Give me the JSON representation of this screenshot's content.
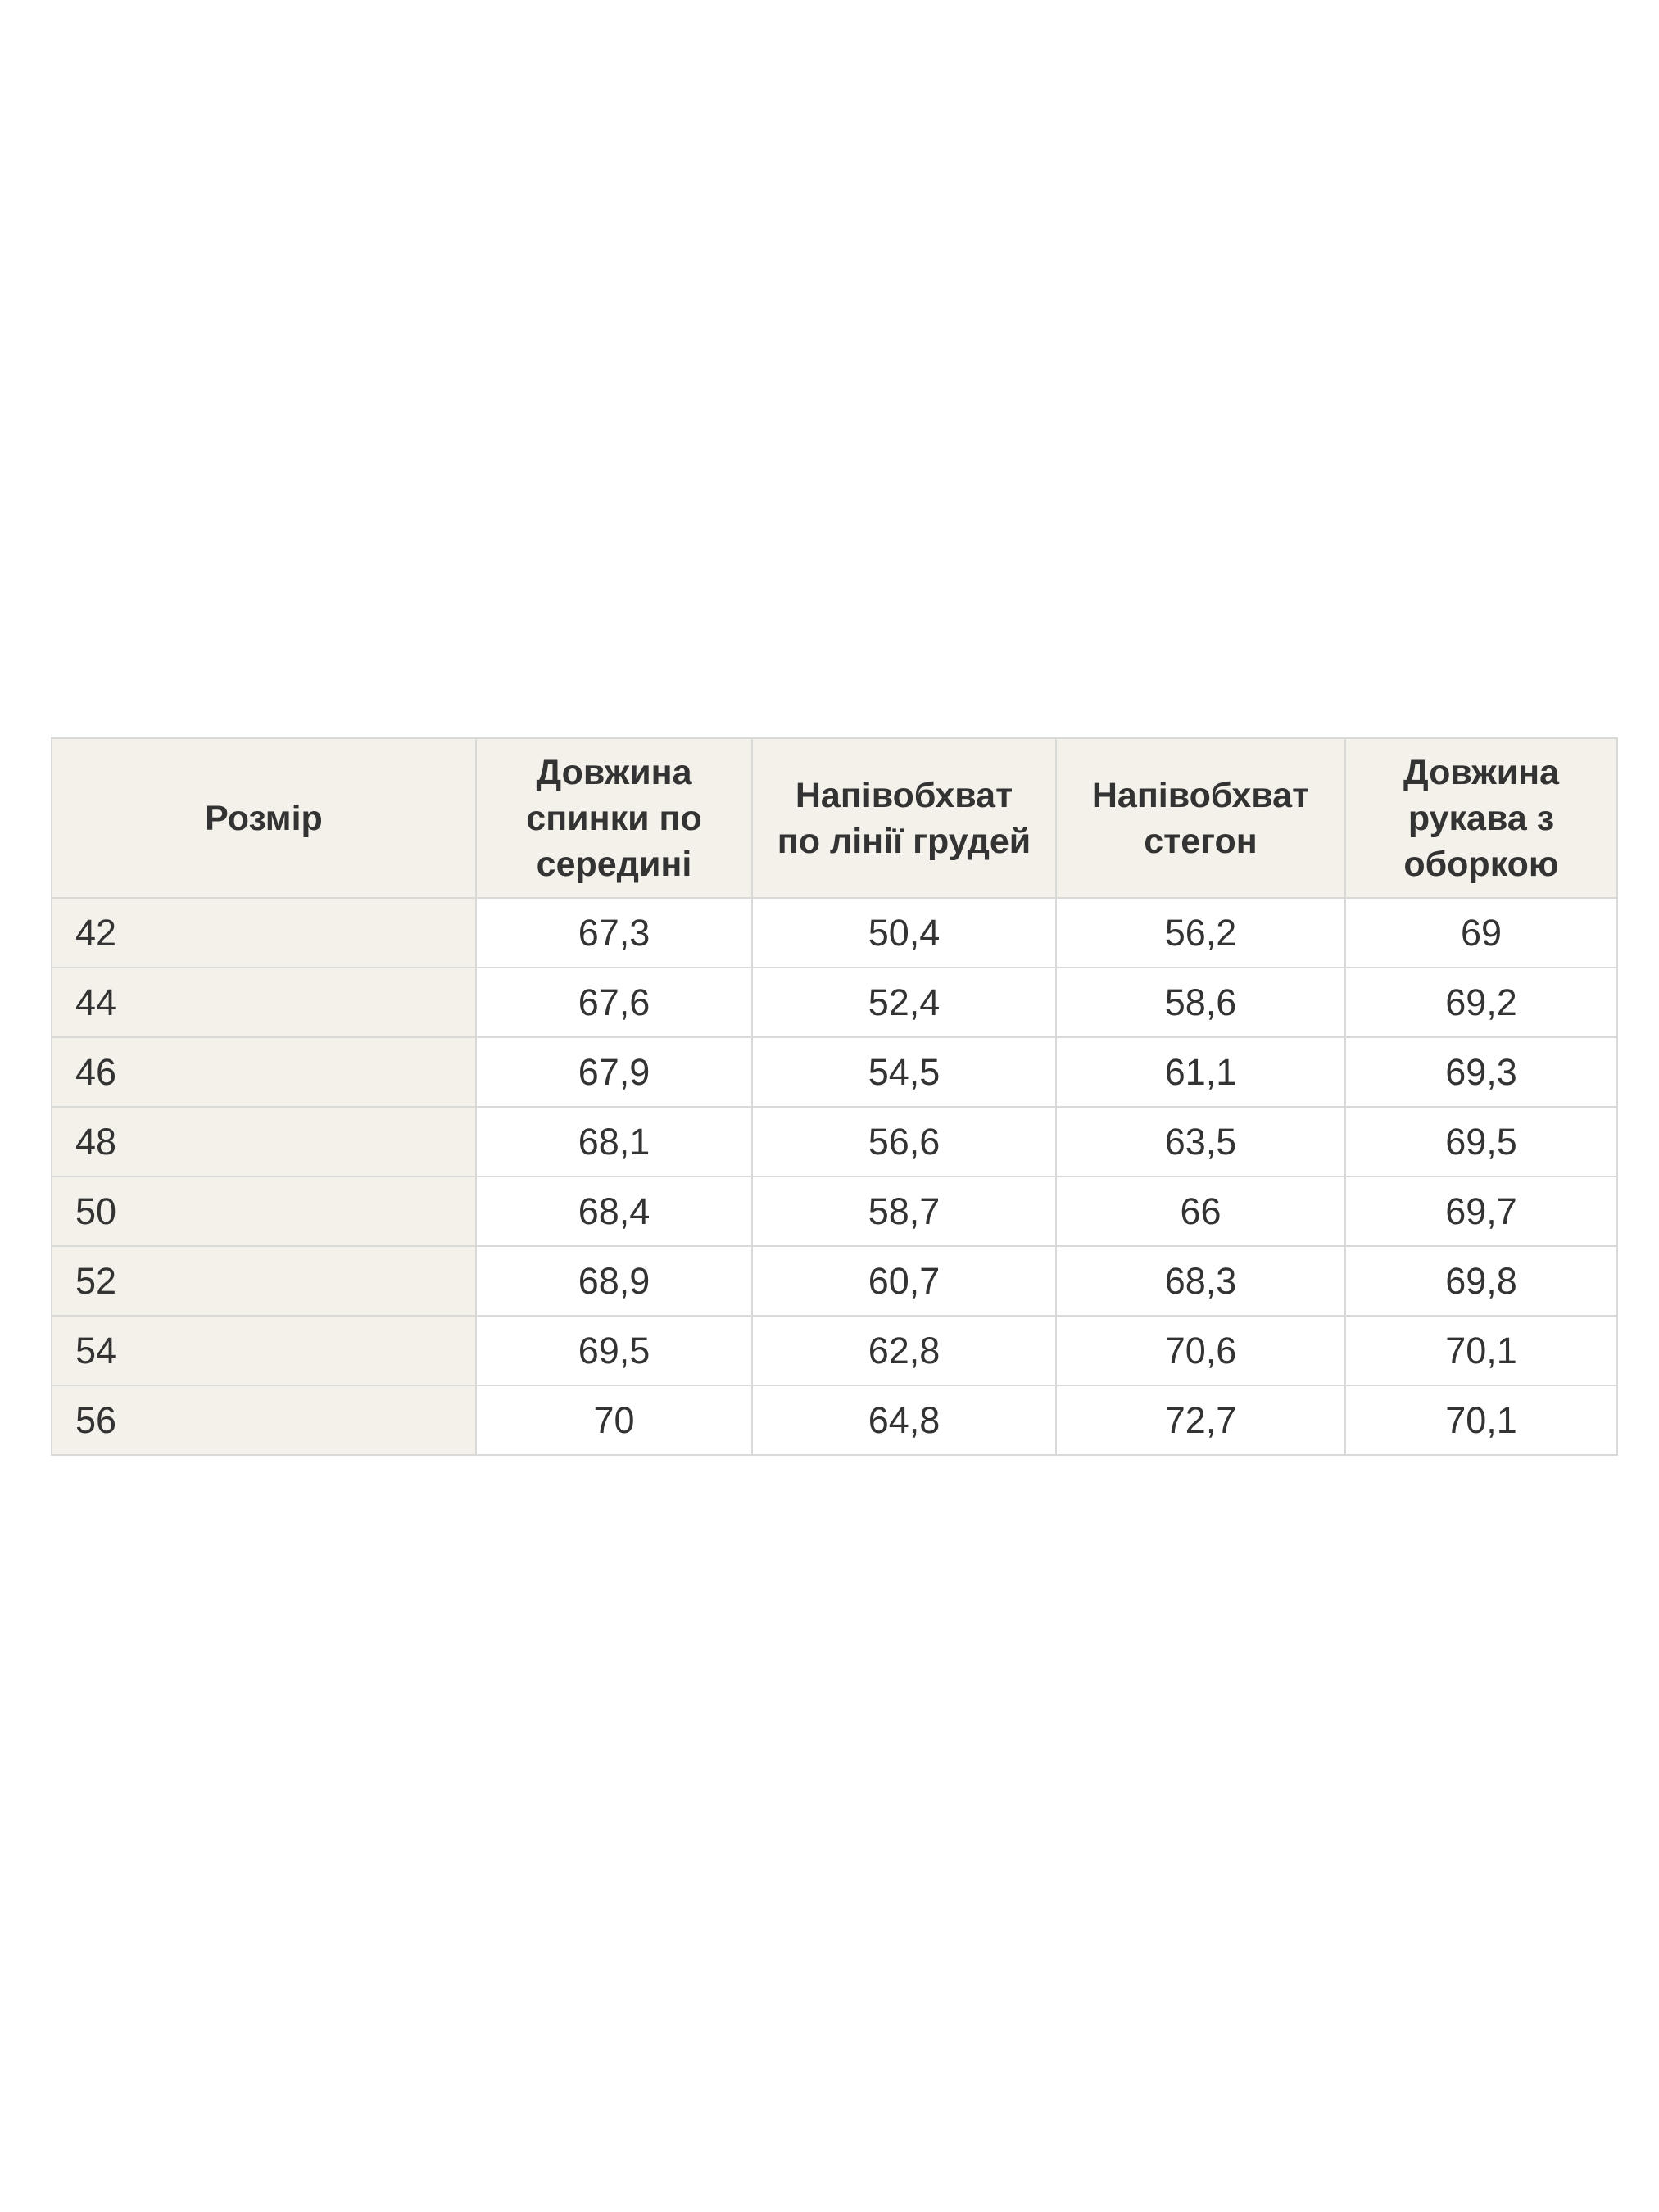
{
  "colors": {
    "page_bg": "#ffffff",
    "header_bg": "#f3f1ea",
    "cell_bg": "#ffffff",
    "border": "#d9d9d7",
    "text": "#333333"
  },
  "chart_data": {
    "type": "table",
    "columns": [
      "Розмір",
      "Довжина\nспинки по\nсередині",
      "Напівобхват\nпо лінії грудей",
      "Напівобхват\nстегон",
      "Довжина\nрукава з\nоборкою"
    ],
    "rows": [
      [
        "42",
        "67,3",
        "50,4",
        "56,2",
        "69"
      ],
      [
        "44",
        "67,6",
        "52,4",
        "58,6",
        "69,2"
      ],
      [
        "46",
        "67,9",
        "54,5",
        "61,1",
        "69,3"
      ],
      [
        "48",
        "68,1",
        "56,6",
        "63,5",
        "69,5"
      ],
      [
        "50",
        "68,4",
        "58,7",
        "66",
        "69,7"
      ],
      [
        "52",
        "68,9",
        "60,7",
        "68,3",
        "69,8"
      ],
      [
        "54",
        "69,5",
        "62,8",
        "70,6",
        "70,1"
      ],
      [
        "56",
        "70",
        "64,8",
        "72,7",
        "70,1"
      ]
    ]
  }
}
